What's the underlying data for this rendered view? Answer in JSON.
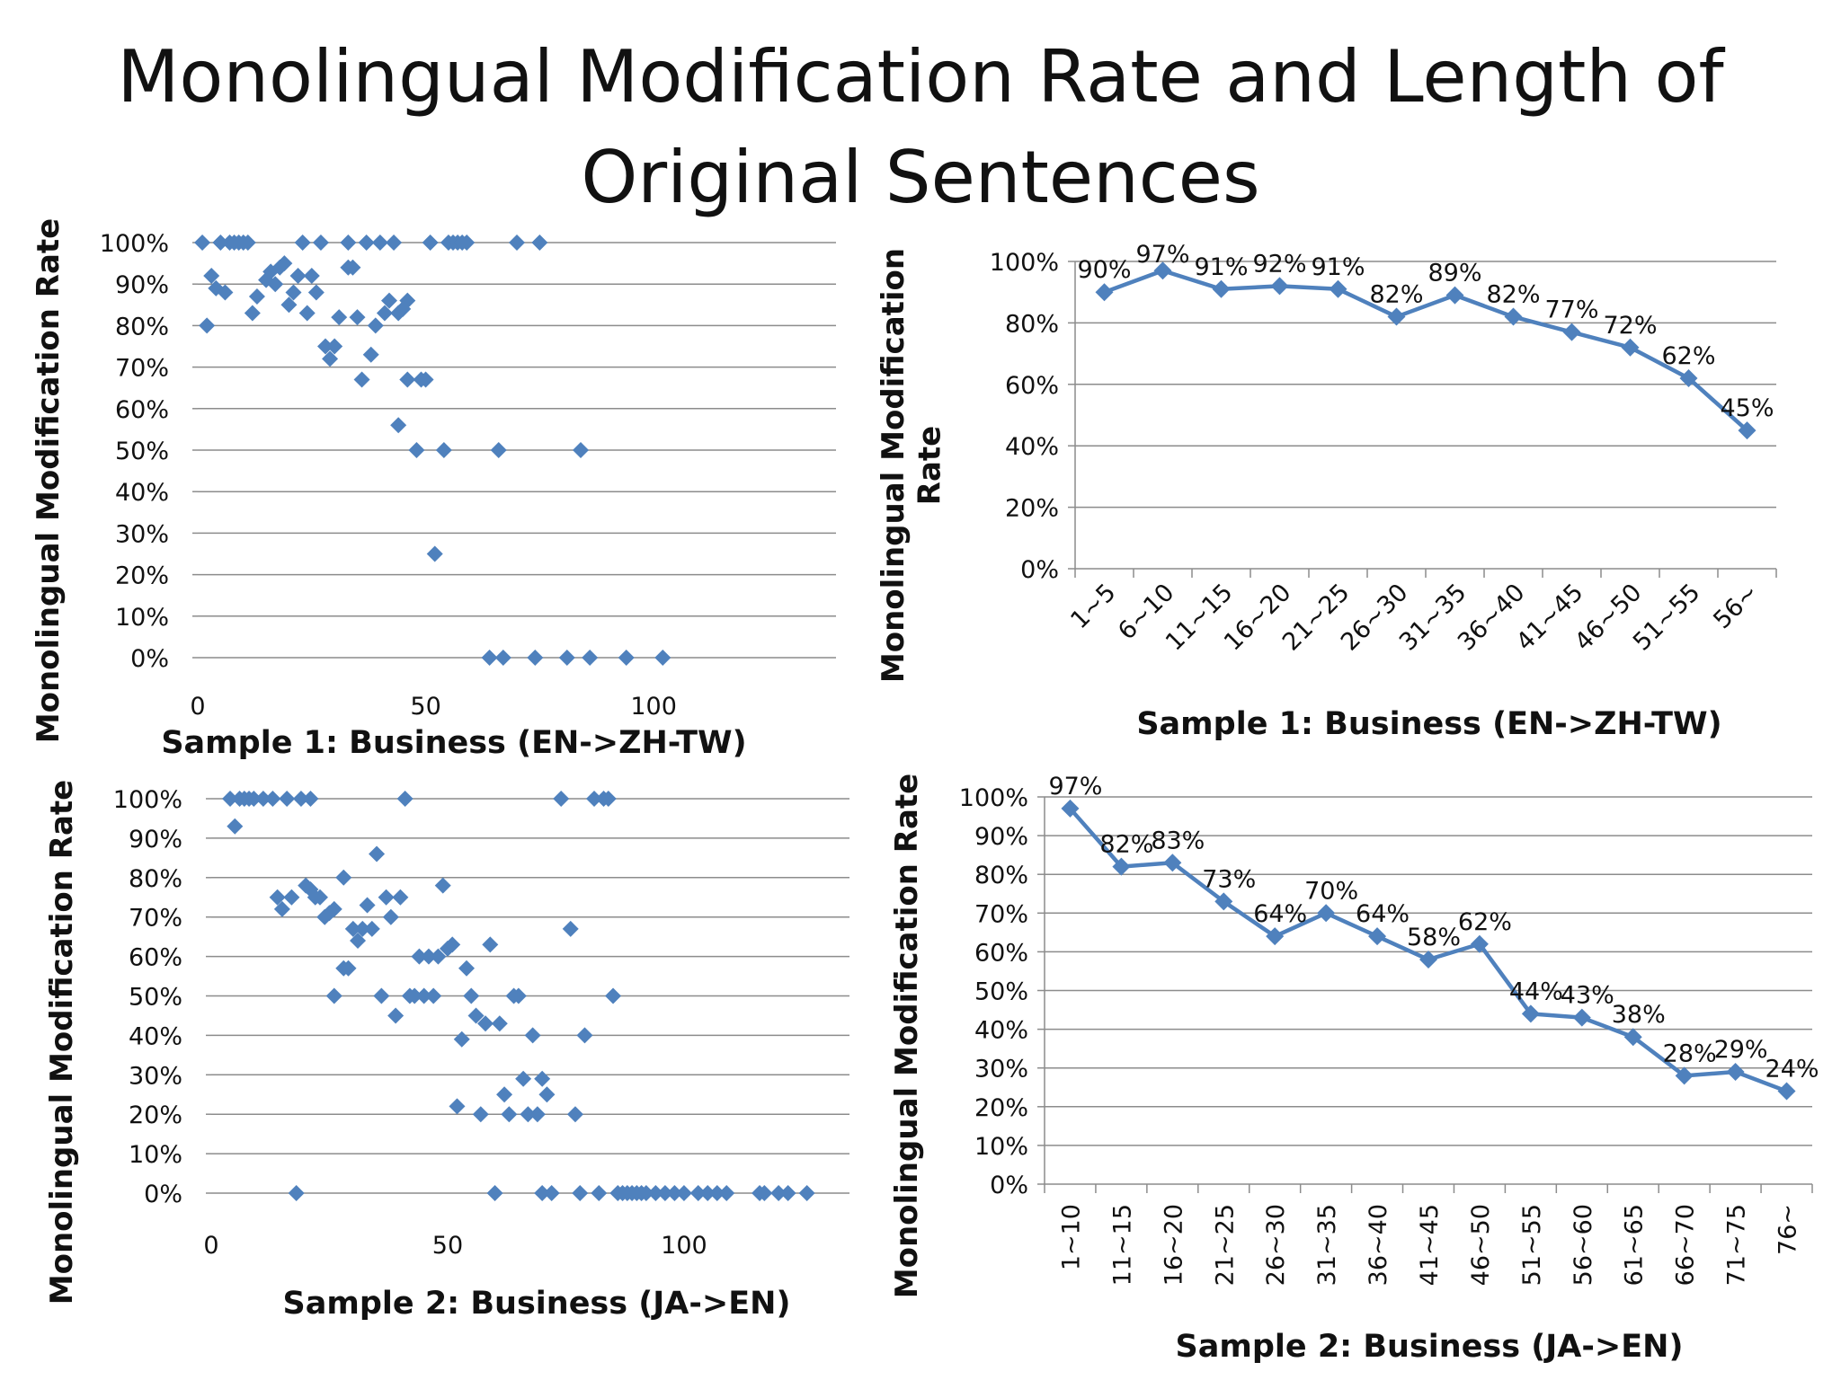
{
  "title": {
    "line1": "Monolingual Modification Rate and Length of",
    "line2": "Original Sentences"
  },
  "colors": {
    "series": "#4f81bd",
    "grid": "#8c8c8c",
    "text": "#111111"
  },
  "chart_data": [
    {
      "id": "scatter1",
      "type": "scatter",
      "xlabel": "Sample 1: Business (EN->ZH-TW)",
      "ylabel": "Monolingual Modification Rate",
      "xlim": [
        0,
        140
      ],
      "ylim": [
        0,
        100
      ],
      "xticks": [
        0,
        50,
        100
      ],
      "yticks": [
        "0%",
        "10%",
        "20%",
        "30%",
        "40%",
        "50%",
        "60%",
        "70%",
        "80%",
        "90%",
        "100%"
      ],
      "points": [
        [
          1,
          100
        ],
        [
          5,
          100
        ],
        [
          7,
          100
        ],
        [
          8,
          100
        ],
        [
          9,
          100
        ],
        [
          10,
          100
        ],
        [
          11,
          100
        ],
        [
          23,
          100
        ],
        [
          27,
          100
        ],
        [
          33,
          100
        ],
        [
          37,
          100
        ],
        [
          40,
          100
        ],
        [
          43,
          100
        ],
        [
          51,
          100
        ],
        [
          55,
          100
        ],
        [
          56,
          100
        ],
        [
          57,
          100
        ],
        [
          58,
          100
        ],
        [
          59,
          100
        ],
        [
          70,
          100
        ],
        [
          75,
          100
        ],
        [
          2,
          80
        ],
        [
          3,
          92
        ],
        [
          4,
          89
        ],
        [
          6,
          88
        ],
        [
          12,
          83
        ],
        [
          13,
          87
        ],
        [
          15,
          91
        ],
        [
          16,
          93
        ],
        [
          17,
          90
        ],
        [
          18,
          94
        ],
        [
          19,
          95
        ],
        [
          20,
          85
        ],
        [
          21,
          88
        ],
        [
          22,
          92
        ],
        [
          24,
          83
        ],
        [
          25,
          92
        ],
        [
          26,
          88
        ],
        [
          28,
          75
        ],
        [
          29,
          72
        ],
        [
          30,
          75
        ],
        [
          31,
          82
        ],
        [
          33,
          94
        ],
        [
          34,
          94
        ],
        [
          35,
          82
        ],
        [
          36,
          67
        ],
        [
          38,
          73
        ],
        [
          39,
          80
        ],
        [
          41,
          83
        ],
        [
          42,
          86
        ],
        [
          44,
          83
        ],
        [
          45,
          84
        ],
        [
          46,
          86
        ],
        [
          46,
          67
        ],
        [
          49,
          67
        ],
        [
          50,
          67
        ],
        [
          44,
          56
        ],
        [
          48,
          50
        ],
        [
          54,
          50
        ],
        [
          66,
          50
        ],
        [
          84,
          50
        ],
        [
          52,
          25
        ],
        [
          64,
          0
        ],
        [
          67,
          0
        ],
        [
          74,
          0
        ],
        [
          81,
          0
        ],
        [
          86,
          0
        ],
        [
          94,
          0
        ],
        [
          102,
          0
        ]
      ]
    },
    {
      "id": "line1",
      "type": "line",
      "xlabel": "Sample 1: Business (EN->ZH-TW)",
      "ylabel": "Monolingual Modification Rate",
      "ylim": [
        0,
        100
      ],
      "yticks": [
        "0%",
        "20%",
        "40%",
        "60%",
        "80%",
        "100%"
      ],
      "categories": [
        "1~5",
        "6~10",
        "11~15",
        "16~20",
        "21~25",
        "26~30",
        "31~35",
        "36~40",
        "41~45",
        "46~50",
        "51~55",
        "56~"
      ],
      "values": [
        90,
        97,
        91,
        92,
        91,
        82,
        89,
        82,
        77,
        72,
        62,
        45
      ],
      "labels": [
        "90%",
        "97%",
        "91%",
        "92%",
        "91%",
        "82%",
        "89%",
        "82%",
        "77%",
        "72%",
        "62%",
        "45%"
      ]
    },
    {
      "id": "scatter2",
      "type": "scatter",
      "xlabel": "Sample 2: Business (JA->EN)",
      "ylabel": "Monolingual Modification Rate",
      "xlim": [
        0,
        135
      ],
      "ylim": [
        0,
        100
      ],
      "xticks": [
        0,
        50,
        100
      ],
      "yticks": [
        "0%",
        "10%",
        "20%",
        "30%",
        "40%",
        "50%",
        "60%",
        "70%",
        "80%",
        "90%",
        "100%"
      ],
      "points": [
        [
          4,
          100
        ],
        [
          6,
          100
        ],
        [
          7,
          100
        ],
        [
          8,
          100
        ],
        [
          9,
          100
        ],
        [
          11,
          100
        ],
        [
          13,
          100
        ],
        [
          16,
          100
        ],
        [
          19,
          100
        ],
        [
          21,
          100
        ],
        [
          41,
          100
        ],
        [
          74,
          100
        ],
        [
          81,
          100
        ],
        [
          83,
          100
        ],
        [
          84,
          100
        ],
        [
          5,
          93
        ],
        [
          14,
          75
        ],
        [
          15,
          72
        ],
        [
          17,
          75
        ],
        [
          20,
          78
        ],
        [
          21,
          77
        ],
        [
          22,
          75
        ],
        [
          23,
          75
        ],
        [
          24,
          70
        ],
        [
          25,
          71
        ],
        [
          26,
          72
        ],
        [
          28,
          80
        ],
        [
          28,
          57
        ],
        [
          29,
          57
        ],
        [
          30,
          67
        ],
        [
          31,
          64
        ],
        [
          32,
          67
        ],
        [
          33,
          73
        ],
        [
          34,
          67
        ],
        [
          35,
          86
        ],
        [
          37,
          75
        ],
        [
          38,
          70
        ],
        [
          40,
          75
        ],
        [
          26,
          50
        ],
        [
          36,
          50
        ],
        [
          39,
          45
        ],
        [
          42,
          50
        ],
        [
          43,
          50
        ],
        [
          45,
          50
        ],
        [
          47,
          50
        ],
        [
          44,
          60
        ],
        [
          46,
          60
        ],
        [
          48,
          60
        ],
        [
          49,
          78
        ],
        [
          50,
          62
        ],
        [
          51,
          63
        ],
        [
          52,
          22
        ],
        [
          53,
          39
        ],
        [
          54,
          57
        ],
        [
          55,
          50
        ],
        [
          56,
          45
        ],
        [
          57,
          20
        ],
        [
          58,
          43
        ],
        [
          59,
          63
        ],
        [
          61,
          43
        ],
        [
          62,
          25
        ],
        [
          63,
          20
        ],
        [
          64,
          50
        ],
        [
          65,
          50
        ],
        [
          66,
          29
        ],
        [
          67,
          20
        ],
        [
          68,
          40
        ],
        [
          69,
          20
        ],
        [
          70,
          29
        ],
        [
          71,
          25
        ],
        [
          76,
          67
        ],
        [
          77,
          20
        ],
        [
          79,
          40
        ],
        [
          85,
          50
        ],
        [
          18,
          0
        ],
        [
          60,
          0
        ],
        [
          70,
          0
        ],
        [
          72,
          0
        ],
        [
          78,
          0
        ],
        [
          82,
          0
        ],
        [
          86,
          0
        ],
        [
          87,
          0
        ],
        [
          88,
          0
        ],
        [
          89,
          0
        ],
        [
          90,
          0
        ],
        [
          91,
          0
        ],
        [
          92,
          0
        ],
        [
          94,
          0
        ],
        [
          96,
          0
        ],
        [
          98,
          0
        ],
        [
          100,
          0
        ],
        [
          103,
          0
        ],
        [
          105,
          0
        ],
        [
          107,
          0
        ],
        [
          109,
          0
        ],
        [
          116,
          0
        ],
        [
          117,
          0
        ],
        [
          120,
          0
        ],
        [
          122,
          0
        ],
        [
          126,
          0
        ]
      ]
    },
    {
      "id": "line2",
      "type": "line",
      "xlabel": "Sample 2: Business (JA->EN)",
      "ylabel": "Monolingual Modification Rate",
      "ylim": [
        0,
        100
      ],
      "yticks": [
        "0%",
        "10%",
        "20%",
        "30%",
        "40%",
        "50%",
        "60%",
        "70%",
        "80%",
        "90%",
        "100%"
      ],
      "categories": [
        "1~10",
        "11~15",
        "16~20",
        "21~25",
        "26~30",
        "31~35",
        "36~40",
        "41~45",
        "46~50",
        "51~55",
        "56~60",
        "61~65",
        "66~70",
        "71~75",
        "76~"
      ],
      "values": [
        97,
        82,
        83,
        73,
        64,
        70,
        64,
        58,
        62,
        44,
        43,
        38,
        28,
        29,
        24
      ],
      "labels": [
        "97%",
        "82%",
        "83%",
        "73%",
        "64%",
        "70%",
        "64%",
        "58%",
        "62%",
        "44%",
        "43%",
        "38%",
        "28%",
        "29%",
        "24%"
      ]
    }
  ]
}
